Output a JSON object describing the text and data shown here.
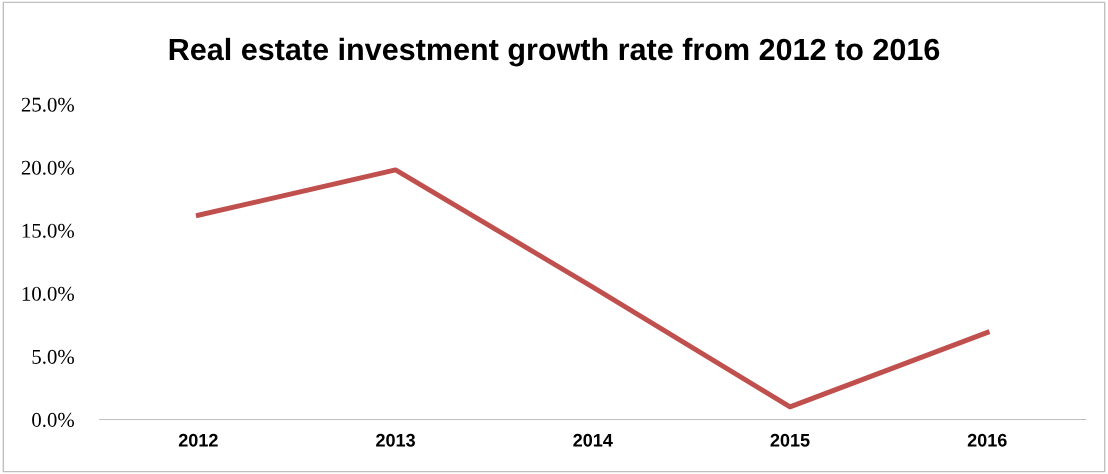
{
  "chart_data": {
    "type": "line",
    "title": "Real estate investment growth rate from 2012 to 2016",
    "categories": [
      "2012",
      "2013",
      "2014",
      "2015",
      "2016"
    ],
    "series": [
      {
        "color": "#c0504d",
        "values": [
          16.2,
          19.8,
          10.5,
          1.0,
          6.9
        ]
      }
    ],
    "ylim": [
      0,
      25
    ],
    "yticks": [
      {
        "value": 0,
        "label": "0.0%"
      },
      {
        "value": 5,
        "label": "5.0%"
      },
      {
        "value": 10,
        "label": "10.0%"
      },
      {
        "value": 15,
        "label": "15.0%"
      },
      {
        "value": 20,
        "label": "20.0%"
      },
      {
        "value": 25,
        "label": "25.0%"
      }
    ],
    "grid": false,
    "legend": false,
    "marker": "none",
    "line_style": "solid"
  }
}
